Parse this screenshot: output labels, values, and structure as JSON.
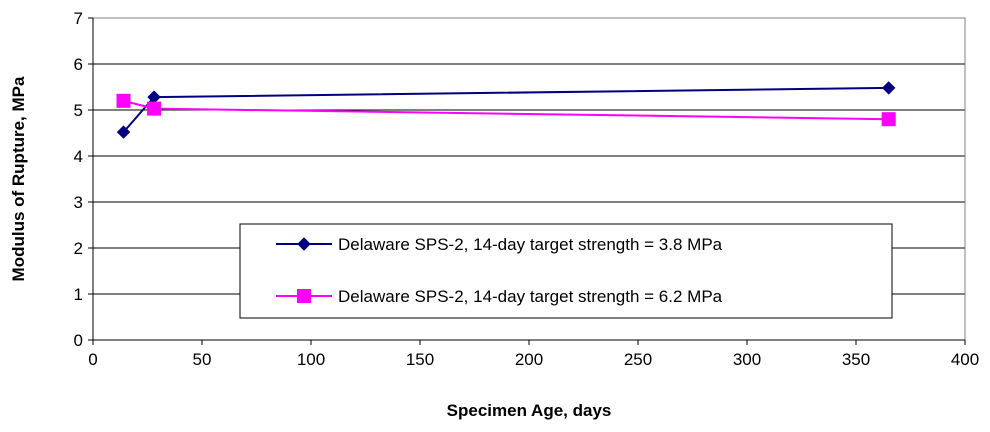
{
  "chart_data": {
    "type": "line",
    "title": "",
    "xlabel": "Specimen Age, days",
    "ylabel": "Modulus of Rupture, MPa",
    "xlim": [
      0,
      400
    ],
    "ylim": [
      0,
      7
    ],
    "x_ticks": [
      "0",
      "50",
      "100",
      "150",
      "200",
      "250",
      "300",
      "350",
      "400"
    ],
    "y_ticks": [
      "0",
      "1",
      "2",
      "3",
      "4",
      "5",
      "6",
      "7"
    ],
    "grid": "horizontal",
    "legend_position": "inside-lower-right",
    "series": [
      {
        "name": "Delaware SPS-2, 14-day target strength = 3.8 MPa",
        "color": "#000080",
        "marker": "diamond",
        "x": [
          14,
          28,
          365
        ],
        "y": [
          4.52,
          5.28,
          5.48
        ]
      },
      {
        "name": "Delaware SPS-2, 14-day target strength = 6.2 MPa",
        "color": "#ff00ff",
        "marker": "square",
        "x": [
          14,
          28,
          365
        ],
        "y": [
          5.2,
          5.03,
          4.8
        ]
      }
    ]
  }
}
